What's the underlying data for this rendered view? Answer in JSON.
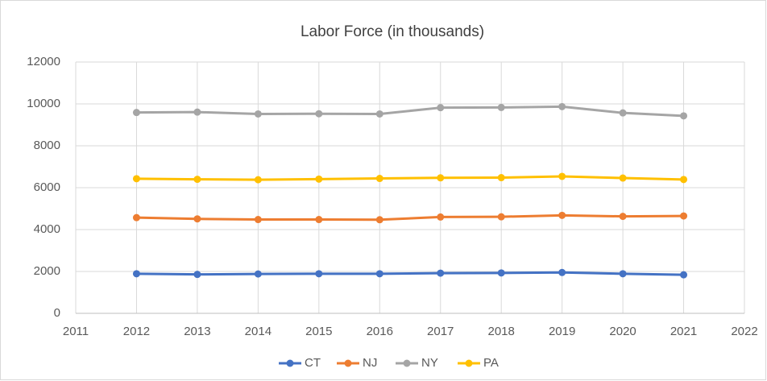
{
  "chart_data": {
    "type": "line",
    "title": "Labor Force (in thousands)",
    "x": [
      2012,
      2013,
      2014,
      2015,
      2016,
      2017,
      2018,
      2019,
      2020,
      2021
    ],
    "series": [
      {
        "name": "CT",
        "color": "#4472c4",
        "values": [
          1890,
          1860,
          1880,
          1890,
          1890,
          1920,
          1930,
          1950,
          1890,
          1840
        ]
      },
      {
        "name": "NJ",
        "color": "#ed7d31",
        "values": [
          4570,
          4510,
          4480,
          4480,
          4470,
          4600,
          4610,
          4680,
          4630,
          4650
        ]
      },
      {
        "name": "NY",
        "color": "#a5a5a5",
        "values": [
          9590,
          9610,
          9520,
          9530,
          9520,
          9820,
          9830,
          9870,
          9570,
          9430
        ]
      },
      {
        "name": "PA",
        "color": "#ffc000",
        "values": [
          6430,
          6400,
          6380,
          6410,
          6440,
          6470,
          6480,
          6540,
          6460,
          6390
        ]
      }
    ],
    "xlim": [
      2011,
      2022
    ],
    "xticks": [
      2011,
      2012,
      2013,
      2014,
      2015,
      2016,
      2017,
      2018,
      2019,
      2020,
      2021,
      2022
    ],
    "ylim": [
      0,
      12000
    ],
    "yticks": [
      0,
      2000,
      4000,
      6000,
      8000,
      10000,
      12000
    ],
    "grid": true,
    "legend": "bottom"
  }
}
